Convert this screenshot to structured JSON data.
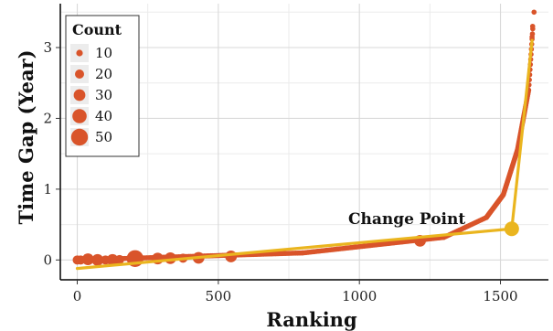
{
  "chart_data": {
    "type": "scatter",
    "xlabel": "Ranking",
    "ylabel": "Time Gap (Year)",
    "xlim": [
      -60,
      1670
    ],
    "ylim": [
      -0.28,
      3.62
    ],
    "x_ticks": [
      0,
      500,
      1000,
      1500
    ],
    "y_ticks": [
      0,
      1,
      2,
      3
    ],
    "grid": true,
    "legend": {
      "title": "Count",
      "position": "top-left",
      "entries": [
        10,
        20,
        30,
        40,
        50
      ]
    },
    "colors": {
      "points": "#d9542a",
      "fit_line": "#eab51f",
      "grid": "#d9d9d9"
    },
    "size_points": [
      {
        "x": 0,
        "y": 0.0,
        "count": 20
      },
      {
        "x": 12,
        "y": 0.0,
        "count": 20
      },
      {
        "x": 38,
        "y": 0.01,
        "count": 30
      },
      {
        "x": 72,
        "y": 0.0,
        "count": 30
      },
      {
        "x": 100,
        "y": 0.0,
        "count": 20
      },
      {
        "x": 125,
        "y": 0.0,
        "count": 30
      },
      {
        "x": 150,
        "y": 0.005,
        "count": 20
      },
      {
        "x": 205,
        "y": 0.02,
        "count": 50
      },
      {
        "x": 285,
        "y": 0.02,
        "count": 30
      },
      {
        "x": 330,
        "y": 0.025,
        "count": 30
      },
      {
        "x": 375,
        "y": 0.025,
        "count": 20
      },
      {
        "x": 430,
        "y": 0.03,
        "count": 30
      },
      {
        "x": 545,
        "y": 0.05,
        "count": 30
      },
      {
        "x": 1215,
        "y": 0.27,
        "count": 30
      }
    ],
    "curve_segments": [
      {
        "x_from": 0,
        "x_to": 800,
        "y_from": 0.0,
        "y_to": 0.1
      },
      {
        "x_from": 800,
        "x_to": 1300,
        "y_from": 0.1,
        "y_to": 0.32
      },
      {
        "x_from": 1300,
        "x_to": 1450,
        "y_from": 0.32,
        "y_to": 0.6
      },
      {
        "x_from": 1450,
        "x_to": 1510,
        "y_from": 0.6,
        "y_to": 0.92
      },
      {
        "x_from": 1510,
        "x_to": 1560,
        "y_from": 0.92,
        "y_to": 1.55
      },
      {
        "x_from": 1560,
        "x_to": 1600,
        "y_from": 1.55,
        "y_to": 2.4
      },
      {
        "x_from": 1600,
        "x_to": 1615,
        "y_from": 2.4,
        "y_to": 3.3
      }
    ],
    "top_points": [
      {
        "x": 1612,
        "y": 3.15
      },
      {
        "x": 1614,
        "y": 3.3
      },
      {
        "x": 1619,
        "y": 3.5
      }
    ],
    "fit_lines": [
      {
        "x": [
          0,
          1540
        ],
        "y": [
          -0.12,
          0.44
        ]
      },
      {
        "x": [
          1540,
          1612
        ],
        "y": [
          0.44,
          3.1
        ]
      }
    ],
    "change_point": {
      "x": 1540,
      "y": 0.44,
      "label": "Change Point"
    }
  }
}
